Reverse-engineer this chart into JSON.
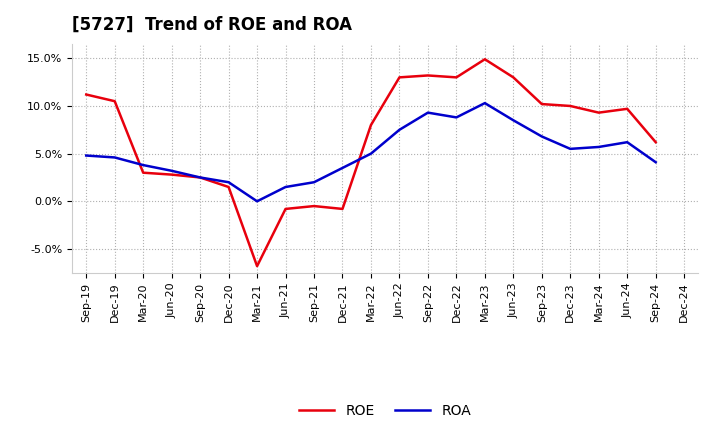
{
  "title": "[5727]  Trend of ROE and ROA",
  "x_labels": [
    "Sep-19",
    "Dec-19",
    "Mar-20",
    "Jun-20",
    "Sep-20",
    "Dec-20",
    "Mar-21",
    "Jun-21",
    "Sep-21",
    "Dec-21",
    "Mar-22",
    "Jun-22",
    "Sep-22",
    "Dec-22",
    "Mar-23",
    "Jun-23",
    "Sep-23",
    "Dec-23",
    "Mar-24",
    "Jun-24",
    "Sep-24",
    "Dec-24"
  ],
  "roe": [
    11.2,
    10.5,
    3.0,
    2.8,
    2.5,
    1.5,
    -6.8,
    -0.8,
    -0.5,
    -0.8,
    8.0,
    13.0,
    13.2,
    13.0,
    14.9,
    13.0,
    10.2,
    10.0,
    9.3,
    9.7,
    6.2,
    null
  ],
  "roa": [
    4.8,
    4.6,
    3.8,
    3.2,
    2.5,
    2.0,
    0.0,
    1.5,
    2.0,
    3.5,
    5.0,
    7.5,
    9.3,
    8.8,
    10.3,
    8.5,
    6.8,
    5.5,
    5.7,
    6.2,
    4.1,
    null
  ],
  "ylim": [
    -7.5,
    16.5
  ],
  "yticks": [
    -5.0,
    0.0,
    5.0,
    10.0,
    15.0
  ],
  "roe_color": "#e8000d",
  "roa_color": "#0000cc",
  "background_color": "#ffffff",
  "grid_color": "#b0b0b0",
  "linewidth": 1.8,
  "title_fontsize": 12,
  "tick_fontsize": 8,
  "legend_fontsize": 10
}
